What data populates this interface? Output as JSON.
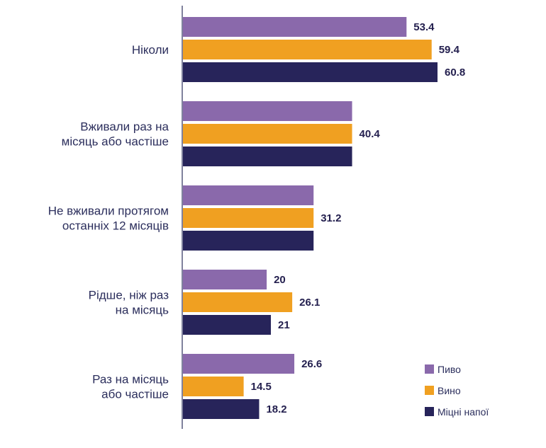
{
  "chart_data": {
    "type": "bar",
    "orientation": "horizontal",
    "categories": [
      [
        "Ніколи"
      ],
      [
        "Вживали  раз на",
        "місяць або частіше"
      ],
      [
        "Не вживали протягом",
        "останніх 12 місяців"
      ],
      [
        "Рідше, ніж раз",
        "на місяць"
      ],
      [
        "Раз на місяць",
        "або частіше"
      ]
    ],
    "series": [
      {
        "name": "Пиво",
        "values": [
          53.4,
          40.4,
          31.2,
          20,
          26.6
        ],
        "shown_labels": [
          "53.4",
          null,
          null,
          "20",
          "26.6"
        ]
      },
      {
        "name": "Вино",
        "values": [
          59.4,
          40.4,
          31.2,
          26.1,
          14.5
        ],
        "shown_labels": [
          "59.4",
          "40.4",
          "31.2",
          "26.1",
          "14.5"
        ]
      },
      {
        "name": "Міцні напої",
        "values": [
          60.8,
          40.4,
          31.2,
          21,
          18.2
        ],
        "shown_labels": [
          "60.8",
          null,
          null,
          "21",
          "18.2"
        ]
      }
    ],
    "colors": [
      "#8a69ab",
      "#f0a021",
      "#27245a"
    ],
    "axis_color": "#2b2e5c",
    "xlim": [
      0,
      70
    ],
    "legend_position": "bottom-right",
    "grid": false
  }
}
